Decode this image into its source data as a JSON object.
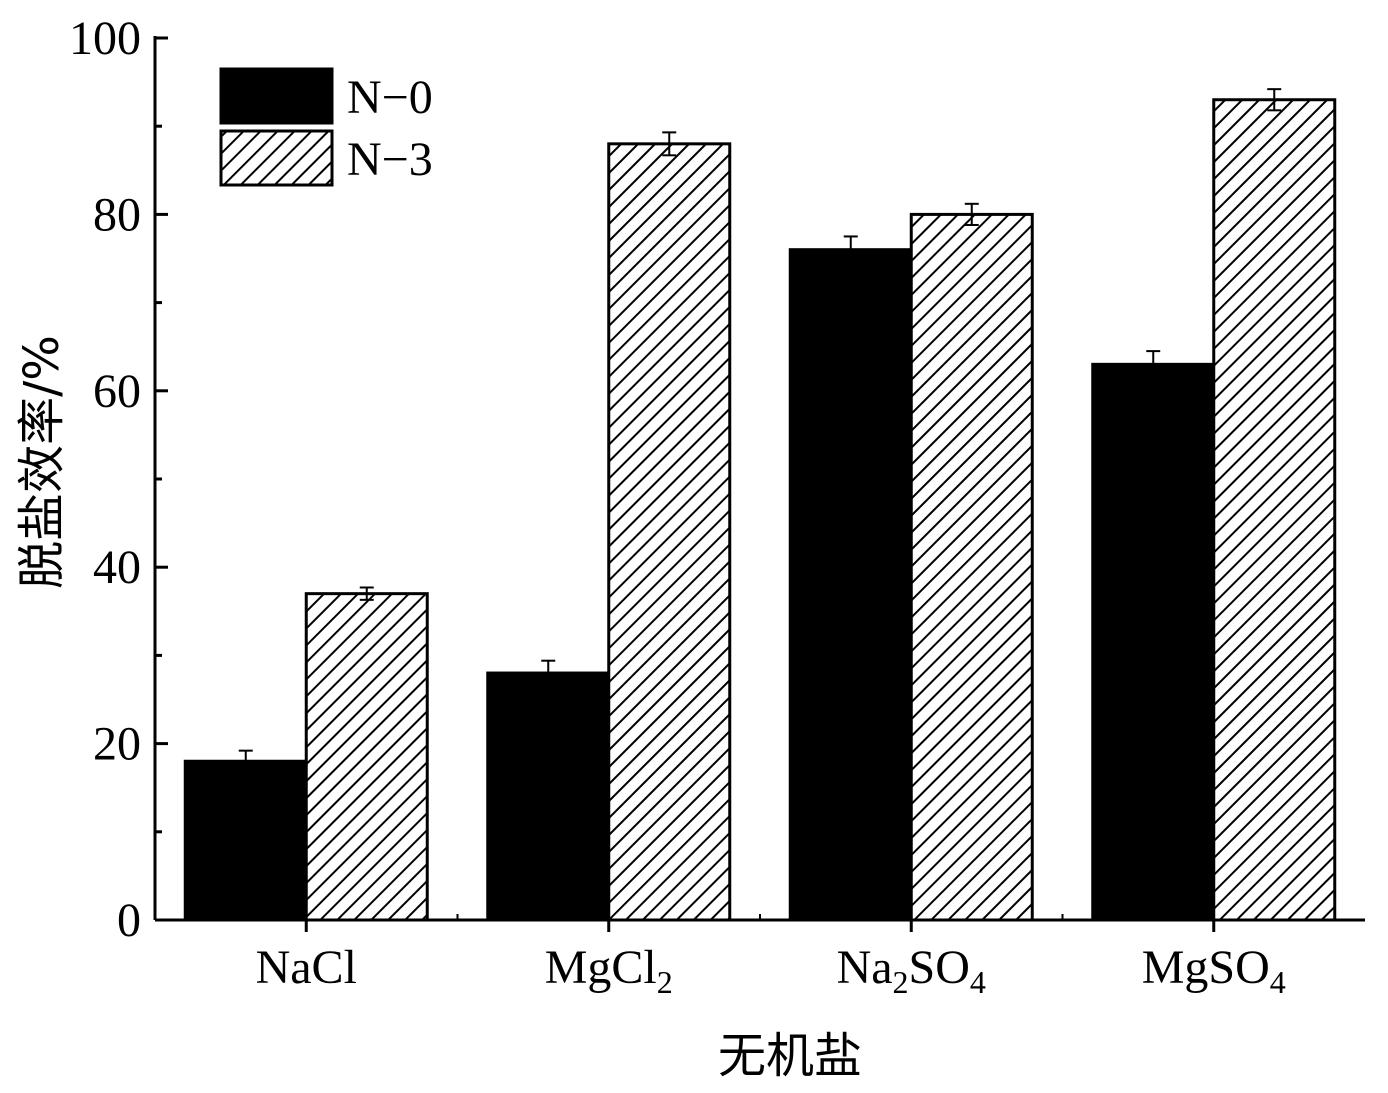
{
  "chart_data": {
    "type": "bar",
    "title": "",
    "xlabel": "无机盐",
    "ylabel": "脱盐效率/%",
    "ylim": [
      0,
      100
    ],
    "yticks": [
      0,
      20,
      40,
      60,
      80,
      100
    ],
    "grid": false,
    "legend_position": "top-left",
    "categories": [
      {
        "base": "NaCl",
        "parts": [
          {
            "t": "NaCl"
          }
        ]
      },
      {
        "base": "MgCl2",
        "parts": [
          {
            "t": "MgCl"
          },
          {
            "t": "2",
            "sub": true
          }
        ]
      },
      {
        "base": "Na2SO4",
        "parts": [
          {
            "t": "Na"
          },
          {
            "t": "2",
            "sub": true
          },
          {
            "t": "SO"
          },
          {
            "t": "4",
            "sub": true
          }
        ]
      },
      {
        "base": "MgSO4",
        "parts": [
          {
            "t": "MgSO"
          },
          {
            "t": "4",
            "sub": true
          }
        ]
      }
    ],
    "series": [
      {
        "name": "N−0",
        "pattern": "solid",
        "color": "#000000",
        "values": [
          18,
          28,
          76,
          63
        ],
        "errors": [
          1.2,
          1.4,
          1.5,
          1.5
        ]
      },
      {
        "name": "N−3",
        "pattern": "hatch",
        "color": "#000000",
        "values": [
          37,
          88,
          80,
          93
        ],
        "errors": [
          0.7,
          1.3,
          1.2,
          1.2
        ]
      }
    ]
  }
}
